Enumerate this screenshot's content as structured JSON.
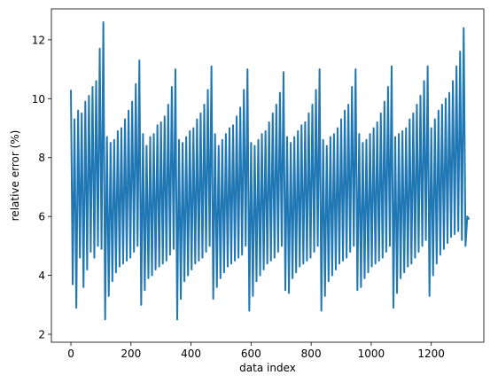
{
  "chart_data": {
    "type": "line",
    "xlabel": "data index",
    "ylabel": "relative error (%)",
    "color": "#1f77b4",
    "xlim": [
      -65,
      1375
    ],
    "ylim": [
      1.73,
      13.05
    ],
    "xticks": [
      0,
      200,
      400,
      600,
      800,
      1000,
      1200
    ],
    "yticks": [
      2,
      4,
      6,
      8,
      10,
      12
    ],
    "x": [
      0,
      6,
      12,
      18,
      24,
      30,
      36,
      42,
      48,
      54,
      60,
      66,
      72,
      78,
      84,
      90,
      96,
      102,
      108,
      114,
      120,
      126,
      132,
      138,
      144,
      150,
      156,
      162,
      168,
      174,
      180,
      186,
      192,
      198,
      204,
      210,
      216,
      222,
      228,
      234,
      240,
      246,
      252,
      258,
      264,
      270,
      276,
      282,
      288,
      294,
      300,
      306,
      312,
      318,
      324,
      330,
      336,
      342,
      348,
      354,
      360,
      366,
      372,
      378,
      384,
      390,
      396,
      402,
      408,
      414,
      420,
      426,
      432,
      438,
      444,
      450,
      456,
      462,
      468,
      474,
      480,
      486,
      492,
      498,
      504,
      510,
      516,
      522,
      528,
      534,
      540,
      546,
      552,
      558,
      564,
      570,
      576,
      582,
      588,
      594,
      600,
      606,
      612,
      618,
      624,
      630,
      636,
      642,
      648,
      654,
      660,
      666,
      672,
      678,
      684,
      690,
      696,
      702,
      708,
      714,
      720,
      726,
      732,
      738,
      744,
      750,
      756,
      762,
      768,
      774,
      780,
      786,
      792,
      798,
      804,
      810,
      816,
      822,
      828,
      834,
      840,
      846,
      852,
      858,
      864,
      870,
      876,
      882,
      888,
      894,
      900,
      906,
      912,
      918,
      924,
      930,
      936,
      942,
      948,
      954,
      960,
      966,
      972,
      978,
      984,
      990,
      996,
      1002,
      1008,
      1014,
      1020,
      1026,
      1032,
      1038,
      1044,
      1050,
      1056,
      1062,
      1068,
      1074,
      1080,
      1086,
      1092,
      1098,
      1104,
      1110,
      1116,
      1122,
      1128,
      1134,
      1140,
      1146,
      1152,
      1158,
      1164,
      1170,
      1176,
      1182,
      1188,
      1194,
      1200,
      1206,
      1212,
      1218,
      1224,
      1230,
      1236,
      1242,
      1248,
      1254,
      1260,
      1266,
      1272,
      1278,
      1284,
      1290,
      1296,
      1302,
      1308,
      1314,
      1320,
      1326
    ],
    "values": [
      10.3,
      3.7,
      9.3,
      2.9,
      9.6,
      4.6,
      9.5,
      3.6,
      9.9,
      4.2,
      10.1,
      4.8,
      10.4,
      4.6,
      10.6,
      5.0,
      11.7,
      4.9,
      12.6,
      2.5,
      8.7,
      3.3,
      8.5,
      3.8,
      8.6,
      4.1,
      8.9,
      4.3,
      9.0,
      4.4,
      9.3,
      4.5,
      9.6,
      4.6,
      9.9,
      4.8,
      10.5,
      5.0,
      11.3,
      3.0,
      8.8,
      3.5,
      8.4,
      3.9,
      8.7,
      4.0,
      8.8,
      4.2,
      9.1,
      4.3,
      9.2,
      4.4,
      9.4,
      4.5,
      9.8,
      4.7,
      10.4,
      4.9,
      11.0,
      2.5,
      8.6,
      3.2,
      8.5,
      3.8,
      8.7,
      4.0,
      8.9,
      4.2,
      9.0,
      4.4,
      9.3,
      4.5,
      9.5,
      4.6,
      9.8,
      4.8,
      10.3,
      5.0,
      11.1,
      3.2,
      8.8,
      3.6,
      8.4,
      3.9,
      8.6,
      4.1,
      8.8,
      4.3,
      9.0,
      4.4,
      9.1,
      4.5,
      9.4,
      4.6,
      9.7,
      4.7,
      10.3,
      5.0,
      11.0,
      2.8,
      8.5,
      3.3,
      8.4,
      3.8,
      8.6,
      4.0,
      8.8,
      4.2,
      8.9,
      4.4,
      9.2,
      4.5,
      9.5,
      4.6,
      9.8,
      4.8,
      10.2,
      5.0,
      10.9,
      3.5,
      8.7,
      3.4,
      8.5,
      3.9,
      8.7,
      4.1,
      8.9,
      4.3,
      9.1,
      4.4,
      9.2,
      4.5,
      9.5,
      4.6,
      9.8,
      4.8,
      10.3,
      5.0,
      11.0,
      2.8,
      8.6,
      3.3,
      8.4,
      3.8,
      8.7,
      4.0,
      8.8,
      4.2,
      9.0,
      4.4,
      9.3,
      4.5,
      9.6,
      4.6,
      9.8,
      4.8,
      10.4,
      5.0,
      11.0,
      3.5,
      8.8,
      3.6,
      8.5,
      3.9,
      8.6,
      4.1,
      8.8,
      4.3,
      9.0,
      4.4,
      9.2,
      4.5,
      9.5,
      4.6,
      9.9,
      4.8,
      10.4,
      5.0,
      11.1,
      2.9,
      8.7,
      3.4,
      8.8,
      3.9,
      8.9,
      4.1,
      9.0,
      4.3,
      9.3,
      4.4,
      9.5,
      4.6,
      9.8,
      4.8,
      10.1,
      5.0,
      10.6,
      5.2,
      11.1,
      3.3,
      9.0,
      4.0,
      9.3,
      4.4,
      9.6,
      4.7,
      9.8,
      4.9,
      10.0,
      5.1,
      10.2,
      5.3,
      10.6,
      5.4,
      11.1,
      5.5,
      11.6,
      5.2,
      12.4,
      5.0,
      6.0,
      5.9
    ]
  }
}
